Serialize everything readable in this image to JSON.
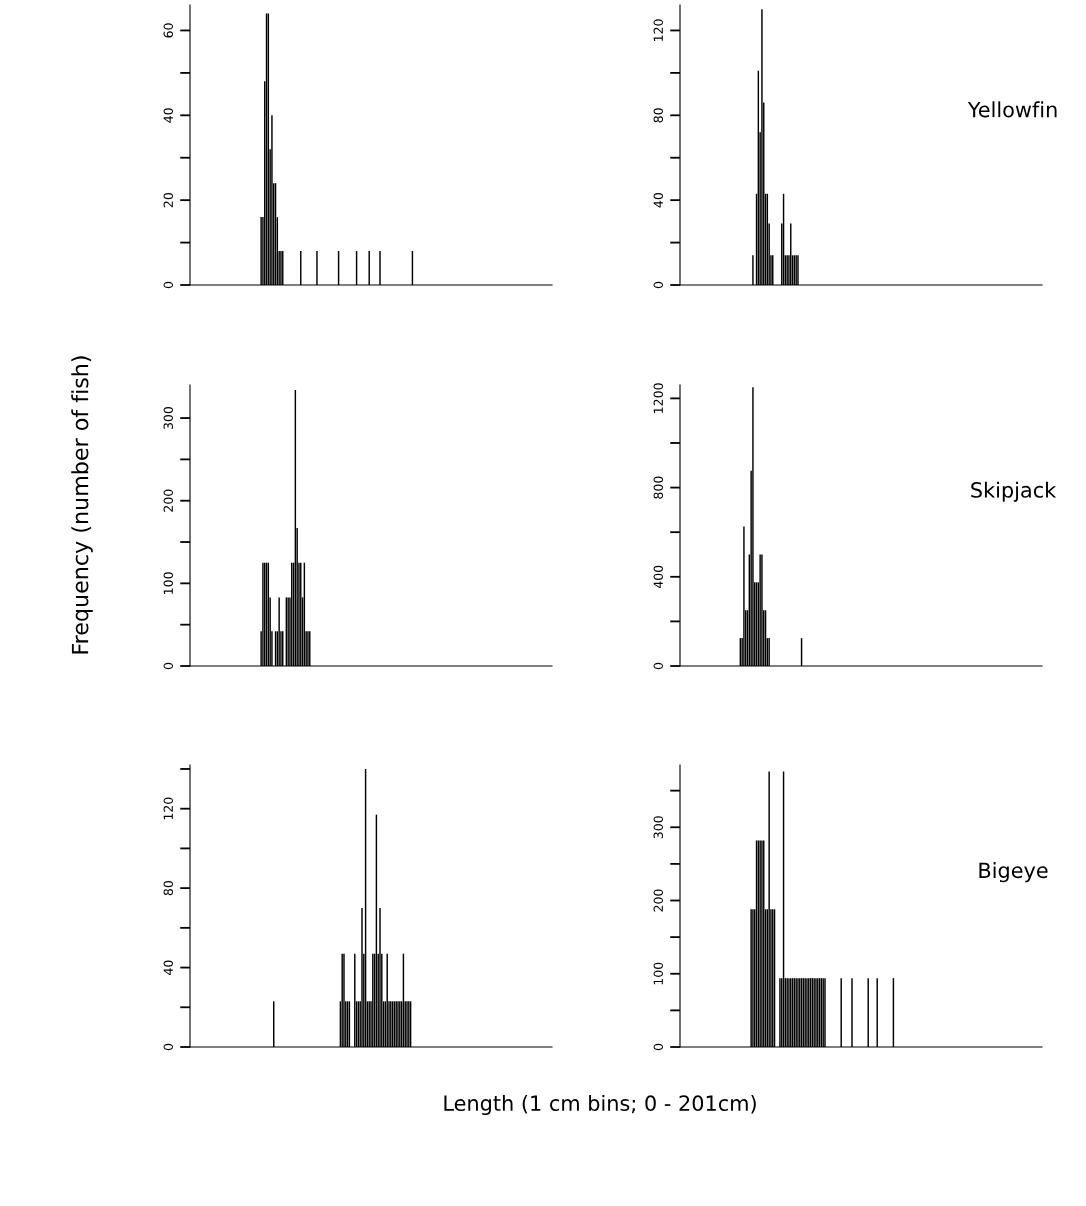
{
  "chart_data": [
    {
      "type": "bar",
      "color": "#000000",
      "tick_labels": "y",
      "grid": false,
      "ylim": [
        0,
        66
      ],
      "yticks": [
        0,
        {
          "value": 10,
          "label": null
        },
        20,
        {
          "value": 30,
          "label": null
        },
        40,
        {
          "value": 50,
          "label": null
        },
        60
      ],
      "categories": [
        null,
        null,
        null,
        null,
        null,
        null,
        null,
        null,
        null,
        null,
        null,
        null,
        null,
        null,
        null,
        null,
        null,
        null,
        null,
        null,
        null,
        null,
        null,
        null,
        null,
        null,
        null,
        null,
        null,
        null,
        null,
        null,
        null,
        null,
        null,
        null,
        null,
        null,
        null,
        null,
        null,
        null,
        null,
        null,
        null,
        null,
        null,
        null,
        null,
        null,
        null,
        null,
        null,
        null,
        null,
        null,
        null,
        null,
        null,
        null,
        null,
        null,
        null,
        null,
        null,
        null,
        null,
        null,
        null,
        null,
        null,
        null,
        null,
        null,
        null,
        null,
        null,
        null,
        null,
        null,
        null,
        null,
        null,
        null,
        null,
        null,
        null,
        null,
        null,
        null,
        null,
        null,
        null,
        null,
        null,
        null,
        null,
        null,
        null,
        null,
        null,
        null,
        null,
        null,
        null,
        null,
        null,
        null,
        null,
        null,
        null,
        null,
        null,
        null,
        null,
        null,
        null,
        null,
        null,
        null,
        null,
        null,
        null,
        null,
        null,
        null,
        null,
        null,
        null,
        null,
        null,
        null,
        null,
        null,
        null,
        null,
        null,
        null,
        null,
        null,
        null,
        null,
        null,
        null,
        null,
        null,
        null,
        null,
        null,
        null,
        null,
        null,
        null,
        null,
        null,
        null,
        null,
        null,
        null,
        null,
        null,
        null,
        null,
        null,
        null,
        null,
        null,
        null,
        null,
        null,
        null,
        null,
        null,
        null,
        null,
        null,
        null,
        null,
        null,
        null,
        null,
        null,
        null,
        null,
        null,
        null,
        null,
        null,
        null,
        null,
        null,
        null,
        null,
        null,
        null,
        null,
        null,
        null,
        null,
        null,
        null
      ],
      "values": [
        0,
        0,
        0,
        0,
        0,
        0,
        0,
        0,
        0,
        0,
        0,
        0,
        0,
        0,
        0,
        0,
        0,
        0,
        0,
        0,
        0,
        0,
        0,
        0,
        0,
        0,
        0,
        0,
        0,
        0,
        0,
        0,
        0,
        0,
        0,
        0,
        0,
        0,
        0,
        16,
        16,
        48,
        64,
        64,
        32,
        40,
        24,
        24,
        16,
        8,
        8,
        8,
        0,
        0,
        0,
        0,
        0,
        0,
        0,
        0,
        0,
        8,
        0,
        0,
        0,
        0,
        0,
        0,
        0,
        0,
        8,
        0,
        0,
        0,
        0,
        0,
        0,
        0,
        0,
        0,
        0,
        0,
        8,
        0,
        0,
        0,
        0,
        0,
        0,
        0,
        0,
        0,
        8,
        0,
        0,
        0,
        0,
        0,
        0,
        8,
        0,
        0,
        0,
        0,
        0,
        8,
        0,
        0,
        0,
        0,
        0,
        0,
        0,
        0,
        0,
        0,
        0,
        0,
        0,
        0,
        0,
        0,
        0,
        8,
        0,
        0,
        0,
        0,
        0,
        0,
        0,
        0,
        0,
        0,
        0,
        0,
        0,
        0,
        0,
        0,
        0,
        0,
        0,
        0,
        0,
        0,
        0,
        0,
        0,
        0,
        0,
        0,
        0,
        0,
        0,
        0,
        0,
        0,
        0,
        0,
        0,
        0,
        0,
        0,
        0,
        0,
        0,
        0,
        0,
        0,
        0,
        0,
        0,
        0,
        0,
        0,
        0,
        0,
        0,
        0,
        0,
        0,
        0,
        0,
        0,
        0,
        0,
        0,
        0,
        0,
        0,
        0,
        0,
        0,
        0,
        0,
        0,
        0,
        0,
        0,
        0
      ]
    },
    {
      "type": "bar",
      "color": "#000000",
      "tick_labels": "y",
      "grid": false,
      "ylim": [
        0,
        132
      ],
      "yticks": [
        0,
        {
          "value": 20,
          "label": null
        },
        40,
        {
          "value": 60,
          "label": null
        },
        80,
        {
          "value": 100,
          "label": null
        },
        120
      ],
      "annotations": [
        "Yellowfin"
      ],
      "categories": [
        null,
        null,
        null,
        null,
        null,
        null,
        null,
        null,
        null,
        null,
        null,
        null,
        null,
        null,
        null,
        null,
        null,
        null,
        null,
        null,
        null,
        null,
        null,
        null,
        null,
        null,
        null,
        null,
        null,
        null,
        null,
        null,
        null,
        null,
        null,
        null,
        null,
        null,
        null,
        null,
        null,
        null,
        null,
        null,
        null,
        null,
        null,
        null,
        null,
        null,
        null,
        null,
        null,
        null,
        null,
        null,
        null,
        null,
        null,
        null,
        null,
        null,
        null,
        null,
        null,
        null,
        null,
        null,
        null,
        null,
        null,
        null,
        null,
        null,
        null,
        null,
        null,
        null,
        null,
        null,
        null,
        null,
        null,
        null,
        null,
        null,
        null,
        null,
        null,
        null,
        null,
        null,
        null,
        null,
        null,
        null,
        null,
        null,
        null,
        null,
        null,
        null,
        null,
        null,
        null,
        null,
        null,
        null,
        null,
        null,
        null,
        null,
        null,
        null,
        null,
        null,
        null,
        null,
        null,
        null,
        null,
        null,
        null,
        null,
        null,
        null,
        null,
        null,
        null,
        null,
        null,
        null,
        null,
        null,
        null,
        null,
        null,
        null,
        null,
        null,
        null,
        null,
        null,
        null,
        null,
        null,
        null,
        null,
        null,
        null,
        null,
        null,
        null,
        null,
        null,
        null,
        null,
        null,
        null,
        null,
        null,
        null,
        null,
        null,
        null,
        null,
        null,
        null,
        null,
        null,
        null,
        null,
        null,
        null,
        null,
        null,
        null,
        null,
        null,
        null,
        null,
        null,
        null,
        null,
        null,
        null,
        null,
        null,
        null,
        null,
        null,
        null,
        null,
        null,
        null,
        null,
        null,
        null,
        null,
        null,
        null
      ],
      "values": [
        0,
        0,
        0,
        0,
        0,
        0,
        0,
        0,
        0,
        0,
        0,
        0,
        0,
        0,
        0,
        0,
        0,
        0,
        0,
        0,
        0,
        0,
        0,
        0,
        0,
        0,
        0,
        0,
        0,
        0,
        0,
        0,
        0,
        0,
        0,
        0,
        0,
        0,
        0,
        0,
        14,
        0,
        43,
        101,
        72,
        130,
        86,
        43,
        43,
        29,
        14,
        14,
        0,
        0,
        0,
        0,
        29,
        43,
        14,
        14,
        14,
        29,
        14,
        14,
        14,
        14,
        0,
        0,
        0,
        0,
        0,
        0,
        0,
        0,
        0,
        0,
        0,
        0,
        0,
        0,
        0,
        0,
        0,
        0,
        0,
        0,
        0,
        0,
        0,
        0,
        0,
        0,
        0,
        0,
        0,
        0,
        0,
        0,
        0,
        0,
        0,
        0,
        0,
        0,
        0,
        0,
        0,
        0,
        0,
        0,
        0,
        0,
        0,
        0,
        0,
        0,
        0,
        0,
        0,
        0,
        0,
        0,
        0,
        0,
        0,
        0,
        0,
        0,
        0,
        0,
        0,
        0,
        0,
        0,
        0,
        0,
        0,
        0,
        0,
        0,
        0,
        0,
        0,
        0,
        0,
        0,
        0,
        0,
        0,
        0,
        0,
        0,
        0,
        0,
        0,
        0,
        0,
        0,
        0,
        0,
        0,
        0,
        0,
        0,
        0,
        0,
        0,
        0,
        0,
        0,
        0,
        0,
        0,
        0,
        0,
        0,
        0,
        0,
        0,
        0,
        0,
        0,
        0,
        0,
        0,
        0,
        0,
        0,
        0,
        0,
        0,
        0,
        0,
        0,
        0,
        0,
        0,
        0,
        0,
        0,
        0
      ]
    },
    {
      "type": "bar",
      "color": "#000000",
      "tick_labels": "y",
      "grid": false,
      "ylim": [
        0,
        340
      ],
      "yticks": [
        0,
        {
          "value": 50,
          "label": null
        },
        100,
        {
          "value": 150,
          "label": null
        },
        200,
        {
          "value": 250,
          "label": null
        },
        300
      ],
      "ylabel": "Frequency (number of fish)",
      "categories": [
        null,
        null,
        null,
        null,
        null,
        null,
        null,
        null,
        null,
        null,
        null,
        null,
        null,
        null,
        null,
        null,
        null,
        null,
        null,
        null,
        null,
        null,
        null,
        null,
        null,
        null,
        null,
        null,
        null,
        null,
        null,
        null,
        null,
        null,
        null,
        null,
        null,
        null,
        null,
        null,
        null,
        null,
        null,
        null,
        null,
        null,
        null,
        null,
        null,
        null,
        null,
        null,
        null,
        null,
        null,
        null,
        null,
        null,
        null,
        null,
        null,
        null,
        null,
        null,
        null,
        null,
        null,
        null,
        null,
        null,
        null,
        null,
        null,
        null,
        null,
        null,
        null,
        null,
        null,
        null,
        null,
        null,
        null,
        null,
        null,
        null,
        null,
        null,
        null,
        null,
        null,
        null,
        null,
        null,
        null,
        null,
        null,
        null,
        null,
        null,
        null,
        null,
        null,
        null,
        null,
        null,
        null,
        null,
        null,
        null,
        null,
        null,
        null,
        null,
        null,
        null,
        null,
        null,
        null,
        null,
        null,
        null,
        null,
        null,
        null,
        null,
        null,
        null,
        null,
        null,
        null,
        null,
        null,
        null,
        null,
        null,
        null,
        null,
        null,
        null,
        null,
        null,
        null,
        null,
        null,
        null,
        null,
        null,
        null,
        null,
        null,
        null,
        null,
        null,
        null,
        null,
        null,
        null,
        null,
        null,
        null,
        null,
        null,
        null,
        null,
        null,
        null,
        null,
        null,
        null,
        null,
        null,
        null,
        null,
        null,
        null,
        null,
        null,
        null,
        null,
        null,
        null,
        null,
        null,
        null,
        null,
        null,
        null,
        null,
        null,
        null,
        null,
        null,
        null,
        null,
        null,
        null,
        null,
        null,
        null,
        null
      ],
      "values": [
        0,
        0,
        0,
        0,
        0,
        0,
        0,
        0,
        0,
        0,
        0,
        0,
        0,
        0,
        0,
        0,
        0,
        0,
        0,
        0,
        0,
        0,
        0,
        0,
        0,
        0,
        0,
        0,
        0,
        0,
        0,
        0,
        0,
        0,
        0,
        0,
        0,
        0,
        0,
        42,
        125,
        125,
        125,
        125,
        83,
        42,
        0,
        42,
        42,
        83,
        42,
        42,
        0,
        83,
        83,
        83,
        125,
        125,
        334,
        167,
        125,
        125,
        83,
        125,
        42,
        42,
        42,
        0,
        0,
        0,
        0,
        0,
        0,
        0,
        0,
        0,
        0,
        0,
        0,
        0,
        0,
        0,
        0,
        0,
        0,
        0,
        0,
        0,
        0,
        0,
        0,
        0,
        0,
        0,
        0,
        0,
        0,
        0,
        0,
        0,
        0,
        0,
        0,
        0,
        0,
        0,
        0,
        0,
        0,
        0,
        0,
        0,
        0,
        0,
        0,
        0,
        0,
        0,
        0,
        0,
        0,
        0,
        0,
        0,
        0,
        0,
        0,
        0,
        0,
        0,
        0,
        0,
        0,
        0,
        0,
        0,
        0,
        0,
        0,
        0,
        0,
        0,
        0,
        0,
        0,
        0,
        0,
        0,
        0,
        0,
        0,
        0,
        0,
        0,
        0,
        0,
        0,
        0,
        0,
        0,
        0,
        0,
        0,
        0,
        0,
        0,
        0,
        0,
        0,
        0,
        0,
        0,
        0,
        0,
        0,
        0,
        0,
        0,
        0,
        0,
        0,
        0,
        0,
        0,
        0,
        0,
        0,
        0,
        0,
        0,
        0,
        0,
        0,
        0,
        0,
        0,
        0,
        0,
        0,
        0,
        0
      ]
    },
    {
      "type": "bar",
      "color": "#000000",
      "tick_labels": "y",
      "grid": false,
      "ylim": [
        0,
        1260
      ],
      "yticks": [
        0,
        {
          "value": 200,
          "label": null
        },
        400,
        {
          "value": 600,
          "label": null
        },
        800,
        {
          "value": 1000,
          "label": null
        },
        1200
      ],
      "annotations": [
        "Skipjack"
      ],
      "categories": [
        null,
        null,
        null,
        null,
        null,
        null,
        null,
        null,
        null,
        null,
        null,
        null,
        null,
        null,
        null,
        null,
        null,
        null,
        null,
        null,
        null,
        null,
        null,
        null,
        null,
        null,
        null,
        null,
        null,
        null,
        null,
        null,
        null,
        null,
        null,
        null,
        null,
        null,
        null,
        null,
        null,
        null,
        null,
        null,
        null,
        null,
        null,
        null,
        null,
        null,
        null,
        null,
        null,
        null,
        null,
        null,
        null,
        null,
        null,
        null,
        null,
        null,
        null,
        null,
        null,
        null,
        null,
        null,
        null,
        null,
        null,
        null,
        null,
        null,
        null,
        null,
        null,
        null,
        null,
        null,
        null,
        null,
        null,
        null,
        null,
        null,
        null,
        null,
        null,
        null,
        null,
        null,
        null,
        null,
        null,
        null,
        null,
        null,
        null,
        null,
        null,
        null,
        null,
        null,
        null,
        null,
        null,
        null,
        null,
        null,
        null,
        null,
        null,
        null,
        null,
        null,
        null,
        null,
        null,
        null,
        null,
        null,
        null,
        null,
        null,
        null,
        null,
        null,
        null,
        null,
        null,
        null,
        null,
        null,
        null,
        null,
        null,
        null,
        null,
        null,
        null,
        null,
        null,
        null,
        null,
        null,
        null,
        null,
        null,
        null,
        null,
        null,
        null,
        null,
        null,
        null,
        null,
        null,
        null,
        null,
        null,
        null,
        null,
        null,
        null,
        null,
        null,
        null,
        null,
        null,
        null,
        null,
        null,
        null,
        null,
        null,
        null,
        null,
        null,
        null,
        null,
        null,
        null,
        null,
        null,
        null,
        null,
        null,
        null,
        null,
        null,
        null,
        null,
        null,
        null,
        null,
        null,
        null,
        null,
        null,
        null
      ],
      "values": [
        0,
        0,
        0,
        0,
        0,
        0,
        0,
        0,
        0,
        0,
        0,
        0,
        0,
        0,
        0,
        0,
        0,
        0,
        0,
        0,
        0,
        0,
        0,
        0,
        0,
        0,
        0,
        0,
        0,
        0,
        0,
        0,
        0,
        125,
        125,
        625,
        250,
        250,
        500,
        875,
        1250,
        375,
        375,
        375,
        500,
        500,
        250,
        250,
        125,
        125,
        0,
        0,
        0,
        0,
        0,
        0,
        0,
        0,
        0,
        0,
        0,
        0,
        0,
        0,
        0,
        0,
        0,
        125,
        0,
        0,
        0,
        0,
        0,
        0,
        0,
        0,
        0,
        0,
        0,
        0,
        0,
        0,
        0,
        0,
        0,
        0,
        0,
        0,
        0,
        0,
        0,
        0,
        0,
        0,
        0,
        0,
        0,
        0,
        0,
        0,
        0,
        0,
        0,
        0,
        0,
        0,
        0,
        0,
        0,
        0,
        0,
        0,
        0,
        0,
        0,
        0,
        0,
        0,
        0,
        0,
        0,
        0,
        0,
        0,
        0,
        0,
        0,
        0,
        0,
        0,
        0,
        0,
        0,
        0,
        0,
        0,
        0,
        0,
        0,
        0,
        0,
        0,
        0,
        0,
        0,
        0,
        0,
        0,
        0,
        0,
        0,
        0,
        0,
        0,
        0,
        0,
        0,
        0,
        0,
        0,
        0,
        0,
        0,
        0,
        0,
        0,
        0,
        0,
        0,
        0,
        0,
        0,
        0,
        0,
        0,
        0,
        0,
        0,
        0,
        0,
        0,
        0,
        0,
        0,
        0,
        0,
        0,
        0,
        0,
        0,
        0,
        0,
        0,
        0,
        0,
        0,
        0,
        0,
        0,
        0,
        0
      ]
    },
    {
      "type": "bar",
      "color": "#000000",
      "tick_labels": "y",
      "grid": false,
      "ylim": [
        0,
        142
      ],
      "yticks": [
        0,
        {
          "value": 20,
          "label": null
        },
        40,
        {
          "value": 60,
          "label": null
        },
        80,
        {
          "value": 100,
          "label": null
        },
        120,
        {
          "value": 140,
          "label": null
        }
      ],
      "xlabel": "Length (1 cm bins; 0 - 201cm)",
      "categories": [
        null,
        null,
        null,
        null,
        null,
        null,
        null,
        null,
        null,
        null,
        null,
        null,
        null,
        null,
        null,
        null,
        null,
        null,
        null,
        null,
        null,
        null,
        null,
        null,
        null,
        null,
        null,
        null,
        null,
        null,
        null,
        null,
        null,
        null,
        null,
        null,
        null,
        null,
        null,
        null,
        null,
        null,
        null,
        null,
        null,
        null,
        null,
        null,
        null,
        null,
        null,
        null,
        null,
        null,
        null,
        null,
        null,
        null,
        null,
        null,
        null,
        null,
        null,
        null,
        null,
        null,
        null,
        null,
        null,
        null,
        null,
        null,
        null,
        null,
        null,
        null,
        null,
        null,
        null,
        null,
        null,
        null,
        null,
        null,
        null,
        null,
        null,
        null,
        null,
        null,
        null,
        null,
        null,
        null,
        null,
        null,
        null,
        null,
        null,
        null,
        null,
        null,
        null,
        null,
        null,
        null,
        null,
        null,
        null,
        null,
        null,
        null,
        null,
        null,
        null,
        null,
        null,
        null,
        null,
        null,
        null,
        null,
        null,
        null,
        null,
        null,
        null,
        null,
        null,
        null,
        null,
        null,
        null,
        null,
        null,
        null,
        null,
        null,
        null,
        null,
        null,
        null,
        null,
        null,
        null,
        null,
        null,
        null,
        null,
        null,
        null,
        null,
        null,
        null,
        null,
        null,
        null,
        null,
        null,
        null,
        null,
        null,
        null,
        null,
        null,
        null,
        null,
        null,
        null,
        null,
        null,
        null,
        null,
        null,
        null,
        null,
        null,
        null,
        null,
        null,
        null,
        null,
        null,
        null,
        null,
        null,
        null,
        null,
        null,
        null,
        null,
        null,
        null,
        null,
        null,
        null,
        null,
        null,
        null,
        null,
        null
      ],
      "values": [
        0,
        0,
        0,
        0,
        0,
        0,
        0,
        0,
        0,
        0,
        0,
        0,
        0,
        0,
        0,
        0,
        0,
        0,
        0,
        0,
        0,
        0,
        0,
        0,
        0,
        0,
        0,
        0,
        0,
        0,
        0,
        0,
        0,
        0,
        0,
        0,
        0,
        0,
        0,
        0,
        0,
        0,
        0,
        0,
        0,
        0,
        23,
        0,
        0,
        0,
        0,
        0,
        0,
        0,
        0,
        0,
        0,
        0,
        0,
        0,
        0,
        0,
        0,
        0,
        0,
        0,
        0,
        0,
        0,
        0,
        0,
        0,
        0,
        0,
        0,
        0,
        0,
        0,
        0,
        0,
        0,
        0,
        0,
        23,
        47,
        47,
        23,
        23,
        23,
        0,
        0,
        47,
        23,
        23,
        23,
        70,
        47,
        140,
        23,
        23,
        23,
        47,
        47,
        117,
        47,
        70,
        47,
        23,
        23,
        47,
        23,
        23,
        23,
        23,
        23,
        23,
        23,
        23,
        47,
        23,
        23,
        23,
        23,
        0,
        0,
        0,
        0,
        0,
        0,
        0,
        0,
        0,
        0,
        0,
        0,
        0,
        0,
        0,
        0,
        0,
        0,
        0,
        0,
        0,
        0,
        0,
        0,
        0,
        0,
        0,
        0,
        0,
        0,
        0,
        0,
        0,
        0,
        0,
        0,
        0,
        0,
        0,
        0,
        0,
        0,
        0,
        0,
        0,
        0,
        0,
        0,
        0,
        0,
        0,
        0,
        0,
        0,
        0,
        0,
        0,
        0,
        0,
        0,
        0,
        0,
        0,
        0,
        0,
        0,
        0,
        0,
        0,
        0,
        0,
        0,
        0,
        0,
        0,
        0,
        0,
        0
      ]
    },
    {
      "type": "bar",
      "color": "#000000",
      "tick_labels": "y",
      "grid": false,
      "ylim": [
        0,
        385
      ],
      "yticks": [
        0,
        {
          "value": 50,
          "label": null
        },
        100,
        {
          "value": 150,
          "label": null
        },
        200,
        {
          "value": 250,
          "label": null
        },
        300,
        {
          "value": 350,
          "label": null
        }
      ],
      "annotations": [
        "Bigeye"
      ],
      "categories": [
        null,
        null,
        null,
        null,
        null,
        null,
        null,
        null,
        null,
        null,
        null,
        null,
        null,
        null,
        null,
        null,
        null,
        null,
        null,
        null,
        null,
        null,
        null,
        null,
        null,
        null,
        null,
        null,
        null,
        null,
        null,
        null,
        null,
        null,
        null,
        null,
        null,
        null,
        null,
        null,
        null,
        null,
        null,
        null,
        null,
        null,
        null,
        null,
        null,
        null,
        null,
        null,
        null,
        null,
        null,
        null,
        null,
        null,
        null,
        null,
        null,
        null,
        null,
        null,
        null,
        null,
        null,
        null,
        null,
        null,
        null,
        null,
        null,
        null,
        null,
        null,
        null,
        null,
        null,
        null,
        null,
        null,
        null,
        null,
        null,
        null,
        null,
        null,
        null,
        null,
        null,
        null,
        null,
        null,
        null,
        null,
        null,
        null,
        null,
        null,
        null,
        null,
        null,
        null,
        null,
        null,
        null,
        null,
        null,
        null,
        null,
        null,
        null,
        null,
        null,
        null,
        null,
        null,
        null,
        null,
        null,
        null,
        null,
        null,
        null,
        null,
        null,
        null,
        null,
        null,
        null,
        null,
        null,
        null,
        null,
        null,
        null,
        null,
        null,
        null,
        null,
        null,
        null,
        null,
        null,
        null,
        null,
        null,
        null,
        null,
        null,
        null,
        null,
        null,
        null,
        null,
        null,
        null,
        null,
        null,
        null,
        null,
        null,
        null,
        null,
        null,
        null,
        null,
        null,
        null,
        null,
        null,
        null,
        null,
        null,
        null,
        null,
        null,
        null,
        null,
        null,
        null,
        null,
        null,
        null,
        null,
        null,
        null,
        null,
        null,
        null,
        null,
        null,
        null,
        null,
        null,
        null,
        null,
        null,
        null,
        null
      ],
      "values": [
        0,
        0,
        0,
        0,
        0,
        0,
        0,
        0,
        0,
        0,
        0,
        0,
        0,
        0,
        0,
        0,
        0,
        0,
        0,
        0,
        0,
        0,
        0,
        0,
        0,
        0,
        0,
        0,
        0,
        0,
        0,
        0,
        0,
        0,
        0,
        0,
        0,
        0,
        0,
        188,
        188,
        188,
        282,
        282,
        282,
        282,
        282,
        188,
        188,
        376,
        188,
        188,
        188,
        0,
        0,
        94,
        94,
        376,
        94,
        94,
        94,
        94,
        94,
        94,
        94,
        94,
        94,
        94,
        94,
        94,
        94,
        94,
        94,
        94,
        94,
        94,
        94,
        94,
        94,
        94,
        94,
        0,
        0,
        0,
        0,
        0,
        0,
        0,
        0,
        94,
        0,
        0,
        0,
        0,
        0,
        94,
        0,
        0,
        0,
        0,
        0,
        0,
        0,
        0,
        94,
        0,
        0,
        0,
        0,
        94,
        0,
        0,
        0,
        0,
        0,
        0,
        0,
        0,
        94,
        0,
        0,
        0,
        0,
        0,
        0,
        0,
        0,
        0,
        0,
        0,
        0,
        0,
        0,
        0,
        0,
        0,
        0,
        0,
        0,
        0,
        0,
        0,
        0,
        0,
        0,
        0,
        0,
        0,
        0,
        0,
        0,
        0,
        0,
        0,
        0,
        0,
        0,
        0,
        0,
        0,
        0,
        0,
        0,
        0,
        0,
        0,
        0,
        0,
        0,
        0,
        0,
        0,
        0,
        0,
        0,
        0,
        0,
        0,
        0,
        0,
        0,
        0,
        0,
        0,
        0,
        0,
        0,
        0,
        0,
        0,
        0,
        0,
        0,
        0,
        0,
        0,
        0,
        0,
        0,
        0,
        0
      ]
    }
  ]
}
